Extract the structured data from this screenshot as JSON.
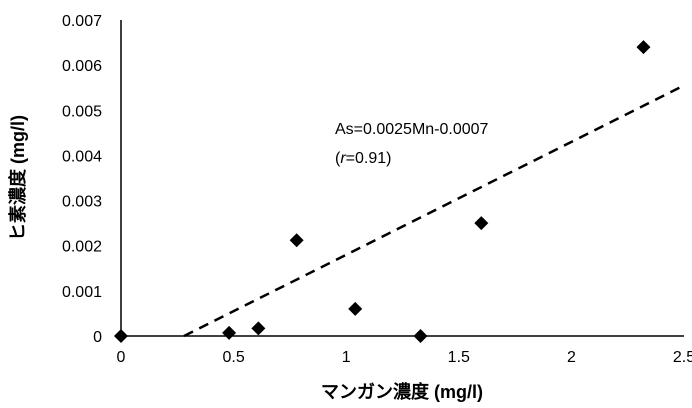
{
  "chart_data": {
    "type": "scatter",
    "title": "",
    "xlabel": "マンガン濃度 (mg/l)",
    "ylabel": "ヒ素濃度 (mg/l)",
    "xlim": [
      0,
      2.5
    ],
    "ylim": [
      0,
      0.007
    ],
    "x_ticks": [
      "0",
      "0.5",
      "1",
      "1.5",
      "2",
      "2.5"
    ],
    "y_ticks": [
      "0",
      "0.001",
      "0.002",
      "0.003",
      "0.004",
      "0.005",
      "0.006",
      "0.007"
    ],
    "grid": false,
    "marker": "diamond",
    "marker_color": "#000000",
    "points": [
      {
        "x": 0.0,
        "y": 0.0
      },
      {
        "x": 0.48,
        "y": 7e-05
      },
      {
        "x": 0.61,
        "y": 0.00017
      },
      {
        "x": 0.78,
        "y": 0.00212
      },
      {
        "x": 1.04,
        "y": 0.0006
      },
      {
        "x": 1.33,
        "y": 0.0
      },
      {
        "x": 1.6,
        "y": 0.0025
      },
      {
        "x": 2.32,
        "y": 0.0064
      }
    ],
    "trendline": {
      "style": "dashed",
      "color": "#000000",
      "slope": 0.0025,
      "intercept": -0.0007,
      "x_range": [
        0.28,
        2.5
      ]
    },
    "annotations": {
      "equation": "As=0.0025Mn-0.0007",
      "r_prefix": "(",
      "r_symbol": "r",
      "r_suffix": "=0.91)"
    }
  }
}
